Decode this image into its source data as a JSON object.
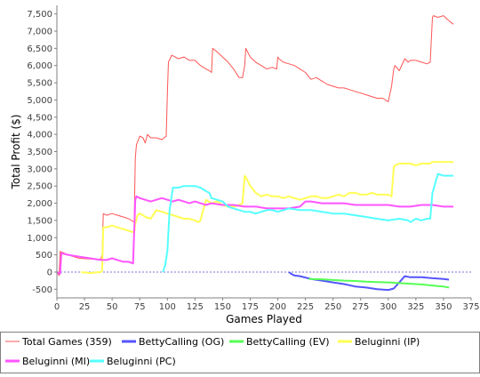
{
  "chart_data": {
    "type": "line",
    "xlabel": "Games Played",
    "ylabel": "Total Profit ($)",
    "xlim": [
      0,
      375
    ],
    "ylim": [
      -750,
      7750
    ],
    "x_ticks": [
      0,
      25,
      50,
      75,
      100,
      125,
      150,
      175,
      200,
      225,
      250,
      275,
      300,
      325,
      350,
      375
    ],
    "x_tick_labels": [
      "0",
      "25",
      "50",
      "75",
      "100",
      "125",
      "150",
      "175",
      "200",
      "225",
      "250",
      "275",
      "300",
      "325",
      "350",
      "375"
    ],
    "y_ticks": [
      -500,
      0,
      500,
      1000,
      1500,
      2000,
      2500,
      3000,
      3500,
      4000,
      4500,
      5000,
      5500,
      6000,
      6500,
      7000,
      7500
    ],
    "y_tick_labels": [
      "-500",
      "0",
      "500",
      "1,000",
      "1,500",
      "2,000",
      "2,500",
      "3,000",
      "3,500",
      "4,000",
      "4,500",
      "5,000",
      "5,500",
      "6,000",
      "6,500",
      "7,000",
      "7,500"
    ],
    "grid": false,
    "zero_line": true,
    "legend_position": "bottom",
    "series": [
      {
        "name": "Total Games (359)",
        "color": "#ff5555",
        "x": [
          0,
          2,
          3,
          10,
          20,
          30,
          35,
          38,
          40,
          41,
          42,
          45,
          50,
          55,
          60,
          65,
          70,
          71,
          72,
          75,
          78,
          80,
          82,
          85,
          90,
          95,
          99,
          100,
          101,
          104,
          110,
          115,
          120,
          125,
          130,
          135,
          138,
          140,
          141,
          145,
          150,
          155,
          160,
          165,
          168,
          170,
          171,
          175,
          180,
          185,
          190,
          195,
          199,
          200,
          201,
          205,
          210,
          215,
          220,
          225,
          230,
          235,
          240,
          245,
          250,
          255,
          260,
          265,
          270,
          275,
          280,
          285,
          290,
          295,
          300,
          303,
          305,
          306,
          310,
          315,
          318,
          320,
          325,
          330,
          335,
          338,
          340,
          341,
          345,
          350,
          355,
          359
        ],
        "y": [
          0,
          -100,
          600,
          500,
          400,
          380,
          370,
          350,
          400,
          500,
          1700,
          1650,
          1700,
          1650,
          1600,
          1550,
          1450,
          3300,
          3700,
          3950,
          3900,
          3750,
          4000,
          3900,
          3900,
          3850,
          3950,
          5200,
          6100,
          6300,
          6200,
          6250,
          6150,
          6150,
          6000,
          5900,
          5850,
          5800,
          6500,
          6400,
          6250,
          6100,
          5900,
          5650,
          5650,
          6000,
          6500,
          6250,
          6100,
          6000,
          5900,
          5950,
          5900,
          6250,
          6200,
          6100,
          6050,
          6000,
          5900,
          5800,
          5600,
          5650,
          5550,
          5450,
          5400,
          5350,
          5350,
          5300,
          5250,
          5200,
          5150,
          5100,
          5050,
          5050,
          4950,
          5400,
          5900,
          6000,
          5850,
          6200,
          6100,
          6150,
          6150,
          6100,
          6050,
          6100,
          7400,
          7450,
          7400,
          7450,
          7300,
          7200
        ]
      },
      {
        "name": "BettyCalling (OG)",
        "color": "#5555ff",
        "x": [
          210,
          212,
          215,
          220,
          230,
          240,
          250,
          260,
          270,
          280,
          290,
          300,
          305,
          310,
          315,
          320,
          330,
          340,
          350,
          355
        ],
        "y": [
          0,
          -50,
          -100,
          -120,
          -200,
          -250,
          -300,
          -350,
          -420,
          -450,
          -500,
          -520,
          -480,
          -300,
          -120,
          -150,
          -150,
          -180,
          -200,
          -220
        ]
      },
      {
        "name": "BettyCalling (EV)",
        "color": "#55ff55",
        "x": [
          228,
          240,
          250,
          260,
          270,
          280,
          290,
          300,
          310,
          320,
          330,
          340,
          350,
          355
        ],
        "y": [
          -200,
          -210,
          -230,
          -250,
          -260,
          -280,
          -290,
          -300,
          -320,
          -340,
          -360,
          -390,
          -420,
          -450
        ]
      },
      {
        "name": "Beluginni (IP)",
        "color": "#ffff55",
        "x": [
          22,
          30,
          35,
          40,
          41,
          42,
          45,
          50,
          55,
          60,
          65,
          70,
          71,
          73,
          75,
          78,
          80,
          85,
          90,
          95,
          100,
          105,
          110,
          115,
          120,
          125,
          128,
          130,
          132,
          135,
          140,
          145,
          150,
          155,
          160,
          165,
          168,
          170,
          172,
          175,
          180,
          185,
          190,
          195,
          200,
          205,
          210,
          215,
          220,
          225,
          230,
          235,
          240,
          245,
          250,
          255,
          260,
          265,
          270,
          275,
          280,
          285,
          290,
          295,
          300,
          303,
          305,
          306,
          310,
          315,
          320,
          325,
          330,
          335,
          338,
          340,
          345,
          350,
          355,
          359
        ],
        "y": [
          0,
          -30,
          -10,
          0,
          50,
          1300,
          1300,
          1350,
          1300,
          1250,
          1200,
          1150,
          1400,
          1650,
          1700,
          1650,
          1600,
          1550,
          1800,
          1750,
          1700,
          1650,
          1600,
          1550,
          1550,
          1500,
          1450,
          1500,
          1750,
          2100,
          2000,
          2050,
          1950,
          1900,
          1900,
          1950,
          2000,
          2800,
          2700,
          2500,
          2300,
          2200,
          2250,
          2200,
          2200,
          2150,
          2200,
          2150,
          2100,
          2150,
          2200,
          2200,
          2150,
          2150,
          2200,
          2250,
          2200,
          2300,
          2300,
          2250,
          2250,
          2300,
          2250,
          2250,
          2250,
          2200,
          3050,
          3100,
          3150,
          3150,
          3150,
          3100,
          3150,
          3150,
          3150,
          3200,
          3200,
          3200,
          3200,
          3200
        ]
      },
      {
        "name": "Beluginni (MI)",
        "color": "#ff55ff",
        "x": [
          0,
          3,
          4,
          10,
          20,
          30,
          40,
          45,
          50,
          55,
          60,
          65,
          69,
          70,
          71,
          72,
          75,
          80,
          85,
          90,
          95,
          100,
          105,
          110,
          115,
          120,
          125,
          130,
          135,
          140,
          150,
          160,
          170,
          180,
          190,
          200,
          210,
          220,
          225,
          230,
          240,
          250,
          260,
          270,
          280,
          290,
          300,
          310,
          320,
          330,
          340,
          350,
          359
        ],
        "y": [
          0,
          -50,
          550,
          500,
          450,
          400,
          350,
          350,
          400,
          350,
          300,
          300,
          250,
          1200,
          2100,
          2200,
          2150,
          2100,
          2050,
          2100,
          2150,
          2100,
          2050,
          2100,
          2050,
          2000,
          2050,
          2000,
          1950,
          2000,
          1950,
          1950,
          1900,
          1900,
          1850,
          1850,
          1850,
          1900,
          2050,
          2050,
          2000,
          2000,
          2000,
          1950,
          1950,
          1950,
          1950,
          1900,
          1900,
          1950,
          1950,
          1900,
          1900
        ]
      },
      {
        "name": "Beluginni (PC)",
        "color": "#55ffff",
        "x": [
          96,
          98,
          100,
          102,
          105,
          110,
          115,
          120,
          125,
          130,
          135,
          138,
          140,
          145,
          150,
          155,
          160,
          165,
          170,
          175,
          180,
          185,
          190,
          195,
          200,
          205,
          210,
          220,
          230,
          240,
          250,
          260,
          270,
          280,
          290,
          300,
          310,
          318,
          320,
          325,
          330,
          335,
          338,
          340,
          345,
          350,
          355,
          359
        ],
        "y": [
          0,
          200,
          600,
          1800,
          2450,
          2450,
          2500,
          2500,
          2500,
          2450,
          2350,
          2300,
          2150,
          2100,
          2050,
          1900,
          1850,
          1800,
          1750,
          1750,
          1700,
          1750,
          1800,
          1800,
          1750,
          1800,
          1850,
          1800,
          1800,
          1750,
          1700,
          1700,
          1650,
          1600,
          1550,
          1500,
          1550,
          1500,
          1450,
          1550,
          1500,
          1550,
          1550,
          2300,
          2850,
          2800,
          2800,
          2800
        ]
      }
    ]
  }
}
